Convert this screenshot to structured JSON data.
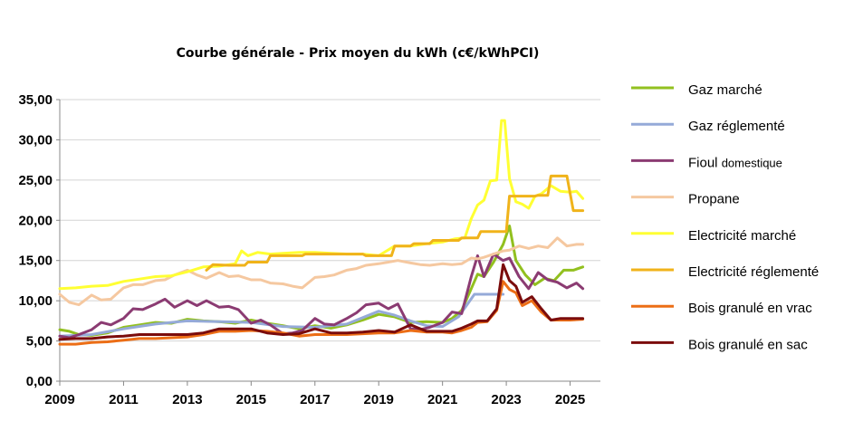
{
  "chart_data": {
    "type": "line",
    "title": "Courbe générale - Prix moyen du kWh (c€/kWhPCI)",
    "xlabel": "",
    "ylabel": "",
    "xlim": [
      2009,
      2025.95
    ],
    "ylim": [
      0,
      35
    ],
    "xticks": [
      2009,
      2011,
      2013,
      2015,
      2017,
      2019,
      2021,
      2023,
      2025
    ],
    "xtick_labels": [
      "2009",
      "2011",
      "2013",
      "2015",
      "2017",
      "2019",
      "2021",
      "2023",
      "2025"
    ],
    "yticks": [
      0,
      5,
      10,
      15,
      20,
      25,
      30,
      35
    ],
    "ytick_labels": [
      "0,00",
      "5,00",
      "10,00",
      "15,00",
      "20,00",
      "25,00",
      "30,00",
      "35,00"
    ],
    "grid": "horizontal",
    "legend_position": "right",
    "series": [
      {
        "name": "Gaz marché",
        "color": "#92c01f",
        "x": [
          2009,
          2009.3,
          2009.6,
          2010,
          2010.5,
          2011,
          2011.5,
          2012,
          2012.5,
          2013,
          2013.5,
          2014,
          2014.5,
          2015,
          2015.5,
          2016,
          2016.5,
          2017,
          2017.5,
          2018,
          2018.5,
          2019,
          2019.5,
          2020,
          2020.5,
          2021,
          2021.3,
          2021.6,
          2021.9,
          2022.1,
          2022.3,
          2022.6,
          2022.9,
          2023.1,
          2023.3,
          2023.6,
          2023.9,
          2024.2,
          2024.5,
          2024.8,
          2025.1,
          2025.4
        ],
        "values": [
          6.4,
          6.2,
          5.8,
          5.7,
          6.0,
          6.7,
          7.0,
          7.3,
          7.2,
          7.7,
          7.5,
          7.4,
          7.2,
          7.6,
          7.2,
          6.9,
          6.5,
          6.9,
          6.6,
          7.0,
          7.6,
          8.3,
          8.0,
          7.3,
          7.4,
          7.3,
          7.8,
          8.8,
          11.5,
          13.3,
          13.0,
          14.8,
          17.0,
          19.3,
          15.0,
          13.2,
          12.0,
          12.8,
          12.5,
          13.8,
          13.8,
          14.2
        ]
      },
      {
        "name": "Gaz réglementé",
        "color": "#95aad8",
        "x": [
          2009,
          2010,
          2011,
          2012,
          2013,
          2014,
          2015,
          2016,
          2017,
          2018,
          2018.5,
          2019,
          2019.5,
          2020,
          2020.5,
          2021,
          2021.5,
          2022,
          2022.5,
          2022.9
        ],
        "values": [
          5.6,
          5.8,
          6.5,
          7.1,
          7.5,
          7.4,
          7.3,
          6.8,
          6.7,
          7.1,
          7.9,
          8.7,
          8.2,
          7.5,
          6.9,
          6.8,
          8.0,
          10.8,
          10.8,
          10.8
        ]
      },
      {
        "name": "Fioul domestique",
        "color": "#8b3b72",
        "x": [
          2009,
          2009.3,
          2009.6,
          2010,
          2010.3,
          2010.6,
          2011,
          2011.3,
          2011.6,
          2012,
          2012.3,
          2012.6,
          2013,
          2013.3,
          2013.6,
          2014,
          2014.3,
          2014.6,
          2015,
          2015.3,
          2015.6,
          2016,
          2016.3,
          2016.6,
          2017,
          2017.3,
          2017.6,
          2018,
          2018.3,
          2018.6,
          2019,
          2019.3,
          2019.6,
          2020,
          2020.3,
          2020.6,
          2021,
          2021.3,
          2021.6,
          2021.9,
          2022.1,
          2022.3,
          2022.6,
          2022.9,
          2023.1,
          2023.4,
          2023.7,
          2024,
          2024.3,
          2024.6,
          2024.9,
          2025.2,
          2025.4
        ],
        "values": [
          5.6,
          5.4,
          5.8,
          6.4,
          7.3,
          7.0,
          7.8,
          9.0,
          8.9,
          9.6,
          10.2,
          9.2,
          10.0,
          9.4,
          10.0,
          9.2,
          9.3,
          8.9,
          7.2,
          7.6,
          7.0,
          5.9,
          6.0,
          6.3,
          7.8,
          7.1,
          7.0,
          7.8,
          8.5,
          9.5,
          9.7,
          9.0,
          9.6,
          6.5,
          6.4,
          6.7,
          7.3,
          8.6,
          8.4,
          13.0,
          15.6,
          13.0,
          15.8,
          15.0,
          15.3,
          13.0,
          11.5,
          13.5,
          12.6,
          12.3,
          11.6,
          12.2,
          11.5
        ]
      },
      {
        "name": "Propane",
        "color": "#f5c8a0",
        "x": [
          2009,
          2009.3,
          2009.6,
          2010,
          2010.3,
          2010.6,
          2011,
          2011.3,
          2011.6,
          2012,
          2012.3,
          2012.6,
          2013,
          2013.3,
          2013.6,
          2014,
          2014.3,
          2014.6,
          2015,
          2015.3,
          2015.6,
          2016,
          2016.3,
          2016.6,
          2017,
          2017.3,
          2017.6,
          2018,
          2018.3,
          2018.6,
          2019,
          2019.3,
          2019.6,
          2020,
          2020.3,
          2020.6,
          2021,
          2021.3,
          2021.6,
          2021.9,
          2022.1,
          2022.3,
          2022.6,
          2022.9,
          2023.1,
          2023.4,
          2023.7,
          2024,
          2024.3,
          2024.6,
          2024.9,
          2025.2,
          2025.4
        ],
        "values": [
          10.8,
          9.8,
          9.5,
          10.7,
          10.1,
          10.2,
          11.6,
          12.0,
          12.0,
          12.5,
          12.6,
          13.2,
          13.8,
          13.2,
          12.8,
          13.5,
          13.0,
          13.1,
          12.6,
          12.6,
          12.2,
          12.1,
          11.8,
          11.6,
          12.9,
          13.0,
          13.2,
          13.8,
          14.0,
          14.4,
          14.6,
          14.8,
          15.0,
          14.7,
          14.5,
          14.4,
          14.6,
          14.5,
          14.6,
          15.3,
          15.2,
          15.4,
          15.8,
          16.2,
          16.3,
          16.8,
          16.5,
          16.8,
          16.6,
          17.8,
          16.8,
          17.0,
          17.0
        ]
      },
      {
        "name": "Electricité marché",
        "color": "#ffff33",
        "x": [
          2009,
          2009.5,
          2010,
          2010.5,
          2011,
          2011.5,
          2012,
          2012.5,
          2013,
          2013.5,
          2014,
          2014.5,
          2014.7,
          2014.9,
          2015.2,
          2015.6,
          2016,
          2016.5,
          2017,
          2017.5,
          2018,
          2018.5,
          2019,
          2019.5,
          2020,
          2020.5,
          2021,
          2021.4,
          2021.7,
          2021.9,
          2022.1,
          2022.3,
          2022.5,
          2022.7,
          2022.85,
          2022.95,
          2023.1,
          2023.3,
          2023.5,
          2023.7,
          2023.9,
          2024.1,
          2024.4,
          2024.7,
          2025.0,
          2025.2,
          2025.4
        ],
        "values": [
          11.5,
          11.6,
          11.8,
          11.9,
          12.4,
          12.7,
          13.0,
          13.1,
          13.6,
          14.2,
          14.3,
          14.6,
          16.2,
          15.6,
          16.0,
          15.8,
          15.9,
          16.0,
          16.0,
          15.9,
          15.8,
          15.8,
          15.6,
          16.8,
          16.8,
          17.1,
          17.3,
          17.7,
          17.8,
          20.2,
          21.9,
          22.5,
          24.9,
          25.0,
          32.4,
          32.4,
          25.2,
          22.3,
          22.0,
          21.5,
          23.0,
          23.3,
          24.3,
          23.6,
          23.5,
          23.6,
          22.7
        ]
      },
      {
        "name": "Electricité réglementé",
        "color": "#f0b31a",
        "x": [
          2013.6,
          2013.8,
          2014.3,
          2014.8,
          2014.9,
          2015.5,
          2015.6,
          2016.6,
          2016.7,
          2017.5,
          2017.6,
          2018.5,
          2018.6,
          2019.4,
          2019.5,
          2020.0,
          2020.1,
          2020.6,
          2020.7,
          2021.5,
          2021.6,
          2022.1,
          2022.2,
          2023.0,
          2023.1,
          2023.9,
          2024.0,
          2024.3,
          2024.4,
          2024.9,
          2025.1,
          2025.4
        ],
        "values": [
          13.8,
          14.5,
          14.4,
          14.4,
          14.8,
          14.8,
          15.6,
          15.6,
          15.8,
          15.8,
          15.8,
          15.8,
          15.6,
          15.6,
          16.8,
          16.8,
          17.1,
          17.1,
          17.5,
          17.5,
          17.8,
          17.8,
          18.6,
          18.6,
          23.0,
          23.0,
          23.1,
          23.1,
          25.5,
          25.5,
          21.2,
          21.2
        ]
      },
      {
        "name": "Bois granulé en vrac",
        "color": "#ec6e16",
        "x": [
          2009,
          2009.5,
          2010,
          2010.5,
          2011,
          2011.5,
          2012,
          2012.5,
          2013,
          2013.5,
          2014,
          2014.5,
          2015,
          2015.5,
          2016,
          2016.5,
          2017,
          2017.5,
          2018,
          2018.5,
          2019,
          2019.5,
          2020,
          2020.5,
          2021,
          2021.3,
          2021.6,
          2021.9,
          2022.1,
          2022.4,
          2022.7,
          2022.9,
          2023.1,
          2023.3,
          2023.5,
          2023.8,
          2024.1,
          2024.4,
          2024.7,
          2025.0,
          2025.4
        ],
        "values": [
          4.6,
          4.6,
          4.8,
          4.9,
          5.1,
          5.3,
          5.3,
          5.4,
          5.5,
          5.8,
          6.2,
          6.2,
          6.3,
          6.2,
          6.0,
          5.6,
          5.8,
          5.8,
          5.8,
          5.9,
          6.0,
          6.0,
          6.3,
          6.1,
          6.1,
          6.0,
          6.3,
          6.7,
          7.3,
          7.4,
          8.8,
          12.4,
          11.4,
          11.0,
          9.4,
          10.0,
          8.6,
          7.6,
          7.6,
          7.6,
          7.7
        ]
      },
      {
        "name": "Bois granulé en sac",
        "color": "#7b0c0c",
        "x": [
          2009,
          2009.5,
          2010,
          2010.5,
          2011,
          2011.5,
          2012,
          2012.5,
          2013,
          2013.5,
          2014,
          2014.5,
          2015,
          2015.5,
          2016,
          2016.5,
          2017,
          2017.5,
          2018,
          2018.5,
          2019,
          2019.5,
          2020,
          2020.5,
          2021,
          2021.3,
          2021.6,
          2021.9,
          2022.1,
          2022.4,
          2022.7,
          2022.9,
          2023.1,
          2023.3,
          2023.5,
          2023.8,
          2024.1,
          2024.4,
          2024.7,
          2025.0,
          2025.4
        ],
        "values": [
          5.2,
          5.3,
          5.3,
          5.5,
          5.6,
          5.8,
          5.8,
          5.8,
          5.8,
          6.0,
          6.5,
          6.5,
          6.5,
          6.0,
          5.8,
          5.9,
          6.5,
          6.0,
          6.0,
          6.1,
          6.3,
          6.1,
          7.0,
          6.2,
          6.2,
          6.2,
          6.6,
          7.1,
          7.5,
          7.5,
          9.0,
          14.5,
          12.5,
          11.8,
          9.8,
          10.5,
          9.0,
          7.6,
          7.8,
          7.8,
          7.8
        ]
      }
    ]
  }
}
